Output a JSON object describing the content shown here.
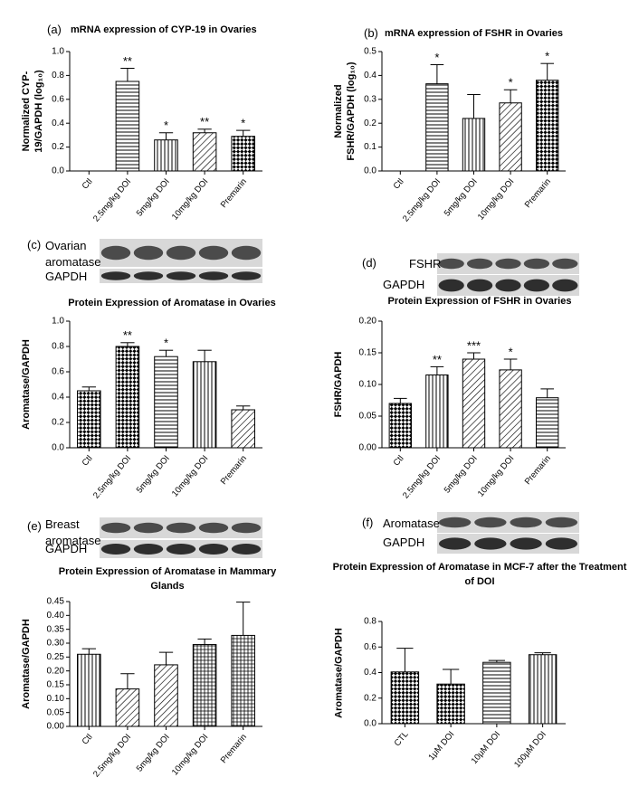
{
  "chart_data": [
    {
      "type": "bar",
      "panel": "(a)",
      "title": "mRNA expression of CYP-19 in Ovaries",
      "ylabel": "Normalized CYP-19/GAPDH (log₁₀)",
      "categories": [
        "Ctl",
        "2.5mg/kg DOI",
        "5mg/kg DOI",
        "10mg/kg DOI",
        "Premarin"
      ],
      "values": [
        0,
        0.75,
        0.26,
        0.32,
        0.29
      ],
      "errors": [
        0,
        0.11,
        0.06,
        0.03,
        0.05
      ],
      "annotations": [
        null,
        "**",
        "*",
        "**",
        "*"
      ],
      "patterns": [
        "hlines",
        "hlines",
        "vlines",
        "diag",
        "checker"
      ],
      "ylim": [
        0,
        1.0
      ],
      "yticks": [
        {
          "value": 0,
          "label": "0.0"
        },
        0.2,
        0.4,
        0.6,
        0.8,
        {
          "value": 1.0,
          "label": "1.0"
        }
      ]
    },
    {
      "type": "bar",
      "panel": "(b)",
      "title": "mRNA expression of FSHR in Ovaries",
      "ylabel": "Normalized FSHR/GAPDH (log₁₀)",
      "categories": [
        "Ctl",
        "2.5mg/kg DOI",
        "5mg/kg DOI",
        "10mg/kg DOI",
        "Premarin"
      ],
      "values": [
        0,
        0.365,
        0.22,
        0.285,
        0.38
      ],
      "errors": [
        0,
        0.08,
        0.1,
        0.055,
        0.07
      ],
      "annotations": [
        null,
        "*",
        null,
        "*",
        "*"
      ],
      "patterns": [
        "hlines",
        "hlines",
        "vlines",
        "diag",
        "checker"
      ],
      "ylim": [
        0,
        0.5
      ],
      "yticks": [
        {
          "value": 0,
          "label": "0.0"
        },
        0.1,
        0.2,
        0.3,
        0.4,
        0.5
      ]
    },
    {
      "type": "bar",
      "panel": "(c)",
      "blot": [
        "Ovarian aromatase",
        "GAPDH"
      ],
      "title": "Protein Expression of Aromatase in Ovaries",
      "ylabel": "Aromatase/GAPDH",
      "categories": [
        "Ctl",
        "2.5mg/kg DOI",
        "5mg/kg DOI",
        "10mg/kg DOI",
        "Premarin"
      ],
      "values": [
        0.45,
        0.8,
        0.72,
        0.68,
        0.3
      ],
      "errors": [
        0.03,
        0.03,
        0.05,
        0.09,
        0.03
      ],
      "annotations": [
        null,
        "**",
        "*",
        null,
        null
      ],
      "patterns": [
        "checker",
        "checker",
        "hlines",
        "vlines",
        "diag"
      ],
      "ylim": [
        0,
        1.0
      ],
      "yticks": [
        {
          "value": 0,
          "label": "0.0"
        },
        0.2,
        0.4,
        0.6,
        0.8,
        {
          "value": 1.0,
          "label": "1.0"
        }
      ]
    },
    {
      "type": "bar",
      "panel": "(d)",
      "blot": [
        "FSHR",
        "GAPDH"
      ],
      "title": "Protein Expression of FSHR in Ovaries",
      "ylabel": "FSHR/GAPDH",
      "categories": [
        "Ctl",
        "2.5mg/kg DOI",
        "5mg/kg DOI",
        "10mg/kg DOI",
        "Premarin"
      ],
      "values": [
        0.07,
        0.115,
        0.14,
        0.123,
        0.079
      ],
      "errors": [
        0.008,
        0.013,
        0.01,
        0.017,
        0.014
      ],
      "annotations": [
        null,
        "**",
        "***",
        "*",
        null
      ],
      "patterns": [
        "checker",
        "vlines",
        "diag",
        "diag",
        "hlines"
      ],
      "ylim": [
        0,
        0.2
      ],
      "yticks": [
        {
          "value": 0,
          "label": "0.00"
        },
        0.05,
        {
          "value": 0.1,
          "label": "0.10"
        },
        0.15,
        {
          "value": 0.2,
          "label": "0.20"
        }
      ]
    },
    {
      "type": "bar",
      "panel": "(e)",
      "blot": [
        "Breast aromatase",
        "GAPDH"
      ],
      "title": "Protein Expression of Aromatase in Mammary Glands",
      "ylabel": "Aromatase/GAPDH",
      "categories": [
        "Ctl",
        "2.5mg/kg DOI",
        "5mg/kg DOI",
        "10mg/kg DOI",
        "Premarin"
      ],
      "values": [
        0.26,
        0.135,
        0.222,
        0.295,
        0.328
      ],
      "errors": [
        0.02,
        0.055,
        0.045,
        0.02,
        0.12
      ],
      "annotations": [
        null,
        null,
        null,
        null,
        null
      ],
      "patterns": [
        "vlines",
        "diag",
        "diag",
        "grid",
        "grid"
      ],
      "ylim": [
        0,
        0.45
      ],
      "yticks": [
        {
          "value": 0,
          "label": "0.00"
        },
        0.05,
        {
          "value": 0.1,
          "label": "0.10"
        },
        0.15,
        {
          "value": 0.2,
          "label": "0.20"
        },
        0.25,
        {
          "value": 0.3,
          "label": "0.30"
        },
        0.35,
        {
          "value": 0.4,
          "label": "0.40"
        },
        0.45
      ]
    },
    {
      "type": "bar",
      "panel": "(f)",
      "blot": [
        "Aromatase",
        "GAPDH"
      ],
      "title": "Protein Expression of Aromatase in MCF-7 after the Treatment of DOI",
      "ylabel": "Aromatase/GAPDH",
      "categories": [
        "CTL",
        "1μM DOI",
        "10μM DOI",
        "100μM DOI"
      ],
      "values": [
        0.405,
        0.31,
        0.48,
        0.54
      ],
      "errors": [
        0.185,
        0.115,
        0.015,
        0.015
      ],
      "annotations": [
        null,
        null,
        null,
        null
      ],
      "patterns": [
        "checker",
        "checker",
        "hlines",
        "vlines"
      ],
      "ylim": [
        0,
        0.8
      ],
      "yticks": [
        {
          "value": 0,
          "label": "0.0"
        },
        0.2,
        0.4,
        0.6,
        0.8
      ]
    }
  ]
}
